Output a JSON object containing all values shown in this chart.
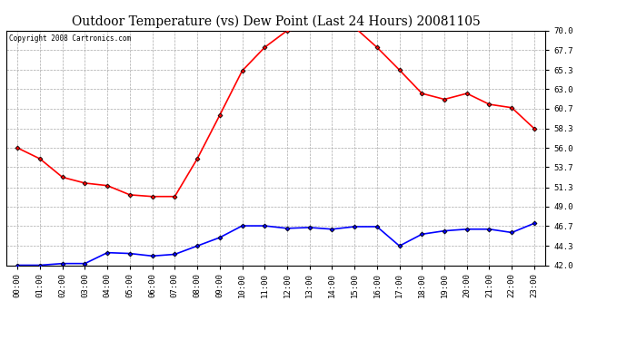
{
  "title": "Outdoor Temperature (vs) Dew Point (Last 24 Hours) 20081105",
  "copyright_text": "Copyright 2008 Cartronics.com",
  "x_labels": [
    "00:00",
    "01:00",
    "02:00",
    "03:00",
    "04:00",
    "05:00",
    "06:00",
    "07:00",
    "08:00",
    "09:00",
    "10:00",
    "11:00",
    "12:00",
    "13:00",
    "14:00",
    "15:00",
    "16:00",
    "17:00",
    "18:00",
    "19:00",
    "20:00",
    "21:00",
    "22:00",
    "23:00"
  ],
  "temp_data": [
    56.0,
    54.7,
    52.5,
    51.8,
    51.5,
    50.4,
    50.2,
    50.2,
    54.7,
    59.9,
    65.2,
    68.0,
    70.0,
    70.3,
    70.4,
    70.4,
    68.0,
    65.3,
    62.5,
    61.8,
    62.5,
    61.2,
    60.8,
    58.3
  ],
  "dew_data": [
    42.0,
    42.0,
    42.2,
    42.2,
    43.5,
    43.4,
    43.1,
    43.3,
    44.3,
    45.3,
    46.7,
    46.7,
    46.4,
    46.5,
    46.3,
    46.6,
    46.6,
    44.3,
    45.7,
    46.1,
    46.3,
    46.3,
    45.9,
    47.0
  ],
  "temp_color": "#ff0000",
  "dew_color": "#0000ff",
  "y_min": 42.0,
  "y_max": 70.0,
  "y_ticks": [
    42.0,
    44.3,
    46.7,
    49.0,
    51.3,
    53.7,
    56.0,
    58.3,
    60.7,
    63.0,
    65.3,
    67.7,
    70.0
  ],
  "background_color": "#ffffff",
  "plot_bg_color": "#ffffff",
  "grid_color": "#aaaaaa",
  "title_fontsize": 10,
  "copyright_fontsize": 5.5,
  "tick_fontsize": 6.5,
  "marker": "D",
  "marker_size": 2.5,
  "marker_color": "#000000",
  "line_width": 1.2
}
